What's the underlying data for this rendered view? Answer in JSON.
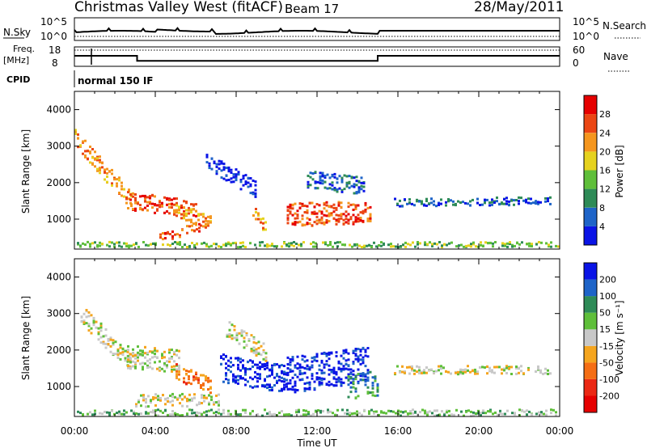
{
  "header": {
    "station": "Christmas Valley West (fitACF)",
    "beam": "Beam 17",
    "date": "28/May/2011"
  },
  "status_panels": {
    "nsky_label": "N.Sky",
    "nsearch_label": "N.Search",
    "nsky_ticks": [
      "10^5",
      "10^0"
    ],
    "freq_label_1": "Freq.",
    "freq_label_2": "[MHz]",
    "freq_ticks": [
      "18",
      "8"
    ],
    "nave_label": "Nave",
    "nave_ticks": [
      "60",
      "0"
    ],
    "cpid_label": "CPID",
    "cpid_value": "normal 150 IF",
    "freq_mhz": [
      {
        "t": 0.0,
        "v": 13.5
      },
      {
        "t": 3.1,
        "v": 13.5
      },
      {
        "t": 3.1,
        "v": 10.4
      },
      {
        "t": 15.0,
        "v": 10.4
      },
      {
        "t": 15.0,
        "v": 13.5
      },
      {
        "t": 24.0,
        "v": 13.5
      }
    ]
  },
  "chart_data": [
    {
      "type": "heatmap",
      "name": "power",
      "xlabel": "",
      "ylabel": "Slant Range [km]",
      "yticks": [
        "1000",
        "2000",
        "3000",
        "4000"
      ],
      "ylim": [
        180,
        4500
      ],
      "xlim": [
        0,
        24
      ],
      "colorbar": {
        "label": "Power [dB]",
        "ticks": [
          "4",
          "8",
          "12",
          "16",
          "20",
          "24",
          "28"
        ],
        "colors": [
          "#0a14e6",
          "#1e64c8",
          "#2e8b57",
          "#5fbf3a",
          "#e6d21e",
          "#f5961e",
          "#eb4614",
          "#e60000"
        ]
      },
      "regions": [
        {
          "t0": 0.0,
          "t1": 2.8,
          "r_start": 3200,
          "r_end": 1500,
          "w": 350,
          "level": 5
        },
        {
          "t0": 2.6,
          "t1": 6.0,
          "r_start": 1500,
          "r_end": 1250,
          "w": 350,
          "level": 6
        },
        {
          "t0": 5.0,
          "t1": 6.8,
          "r_start": 1250,
          "r_end": 850,
          "w": 300,
          "level": 5
        },
        {
          "t0": 4.2,
          "t1": 6.2,
          "r_start": 500,
          "r_end": 800,
          "w": 200,
          "level": 6
        },
        {
          "t0": 8.8,
          "t1": 9.4,
          "r_start": 1200,
          "r_end": 800,
          "w": 250,
          "level": 5
        },
        {
          "t0": 10.5,
          "t1": 14.6,
          "r_start": 1100,
          "r_end": 1200,
          "w": 450,
          "level": 6
        },
        {
          "t0": 15.8,
          "t1": 23.6,
          "r_start": 1450,
          "r_end": 1500,
          "w": 150,
          "level": 1
        },
        {
          "t0": 6.5,
          "t1": 9.0,
          "r_start": 2600,
          "r_end": 1800,
          "w": 350,
          "level": 0
        },
        {
          "t0": 11.5,
          "t1": 14.3,
          "r_start": 2100,
          "r_end": 1900,
          "w": 350,
          "level": 1
        },
        {
          "t0": 0.0,
          "t1": 24.0,
          "r_start": 300,
          "r_end": 300,
          "w": 100,
          "level": 3
        }
      ]
    },
    {
      "type": "heatmap",
      "name": "velocity",
      "xlabel": "Time UT",
      "ylabel": "Slant Range [km]",
      "xticks": [
        "00:00",
        "04:00",
        "08:00",
        "12:00",
        "16:00",
        "20:00",
        "00:00"
      ],
      "yticks": [
        "1000",
        "2000",
        "3000",
        "4000"
      ],
      "ylim": [
        180,
        4500
      ],
      "xlim": [
        0,
        24
      ],
      "colorbar": {
        "label": "Velocity [m s⁻¹]",
        "ticks": [
          "200",
          "100",
          "50",
          "15",
          "-15",
          "-50",
          "-100",
          "-200"
        ],
        "colors": [
          "#0a14e6",
          "#1e64c8",
          "#2e8b57",
          "#5fbf3a",
          "#c8c8c8",
          "#f5a51e",
          "#f56e14",
          "#eb2814",
          "#e60000"
        ]
      },
      "regions": [
        {
          "t0": 0.3,
          "t1": 2.8,
          "r_start": 3000,
          "r_end": 1600,
          "w": 400,
          "level": 4
        },
        {
          "t0": 2.6,
          "t1": 5.2,
          "r_start": 1800,
          "r_end": 1700,
          "w": 450,
          "level": 4
        },
        {
          "t0": 5.0,
          "t1": 6.8,
          "r_start": 1400,
          "r_end": 1000,
          "w": 350,
          "level": 6
        },
        {
          "t0": 3.0,
          "t1": 7.2,
          "r_start": 600,
          "r_end": 650,
          "w": 250,
          "level": 4
        },
        {
          "t0": 7.2,
          "t1": 10.5,
          "r_start": 1500,
          "r_end": 1200,
          "w": 550,
          "level": 0
        },
        {
          "t0": 10.5,
          "t1": 14.5,
          "r_start": 1300,
          "r_end": 1600,
          "w": 700,
          "level": 0
        },
        {
          "t0": 13.5,
          "t1": 15.0,
          "r_start": 1000,
          "r_end": 1100,
          "w": 500,
          "level": 2
        },
        {
          "t0": 15.8,
          "t1": 23.6,
          "r_start": 1450,
          "r_end": 1450,
          "w": 160,
          "level": 4
        },
        {
          "t0": 7.5,
          "t1": 9.5,
          "r_start": 2600,
          "r_end": 1900,
          "w": 350,
          "level": 4
        },
        {
          "t0": 0.0,
          "t1": 24.0,
          "r_start": 280,
          "r_end": 280,
          "w": 120,
          "level": 3
        }
      ]
    }
  ]
}
